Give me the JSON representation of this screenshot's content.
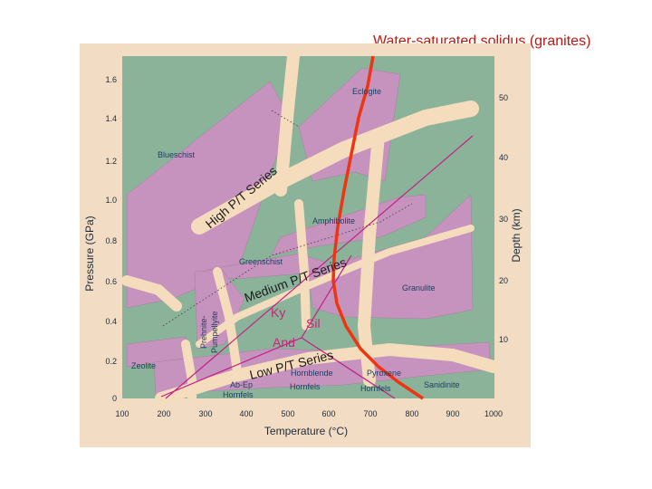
{
  "slide": {
    "title": "Water-saturated solidus (granites)"
  },
  "axes": {
    "x_label": "Temperature (°C)",
    "y_left_label": "Pressure (GPa)",
    "y_right_label": "Depth (km)",
    "x_ticks": [
      "100",
      "200",
      "300",
      "400",
      "500",
      "600",
      "700",
      "800",
      "900",
      "1000"
    ],
    "y_left_ticks": [
      "0",
      "0.2",
      "0.4",
      "0.6",
      "0.8",
      "1.0",
      "1.2",
      "1.4",
      "1.6"
    ],
    "y_right_ticks": [
      "10",
      "20",
      "30",
      "40",
      "50"
    ]
  },
  "facies": {
    "eclogite": "Eclogite",
    "blueschist": "Blueschist",
    "amphibolite": "Amphibolite",
    "greenschist": "Greenschist",
    "granulite": "Granulite",
    "prehnite_1": "Prehnite-",
    "prehnite_2": "Pumpellyite",
    "zeolite": "Zeolite",
    "abep_1": "Ab-Ep",
    "abep_2": "Hornfels",
    "hornblende_1": "Hornblende",
    "hornblende_2": "Hornfels",
    "pyroxene_1": "Pyroxene",
    "pyroxene_2": "Hornfels",
    "sanidinite": "Sanidinite"
  },
  "series": {
    "high": "High P/T Series",
    "medium": "Medium P/T Series",
    "low": "Low P/T Series"
  },
  "minerals": {
    "ky": "Ky",
    "sil": "Sil",
    "and": "And"
  },
  "colors": {
    "panel_background": "#f2dcc4",
    "plot_green": "#8bb39a",
    "facies_purple": "#c693bf",
    "series_band": "#f5dcbc",
    "magenta_lines": "#c21e84",
    "solidus_curve": "#ee3512",
    "title_text": "#c0170c"
  }
}
